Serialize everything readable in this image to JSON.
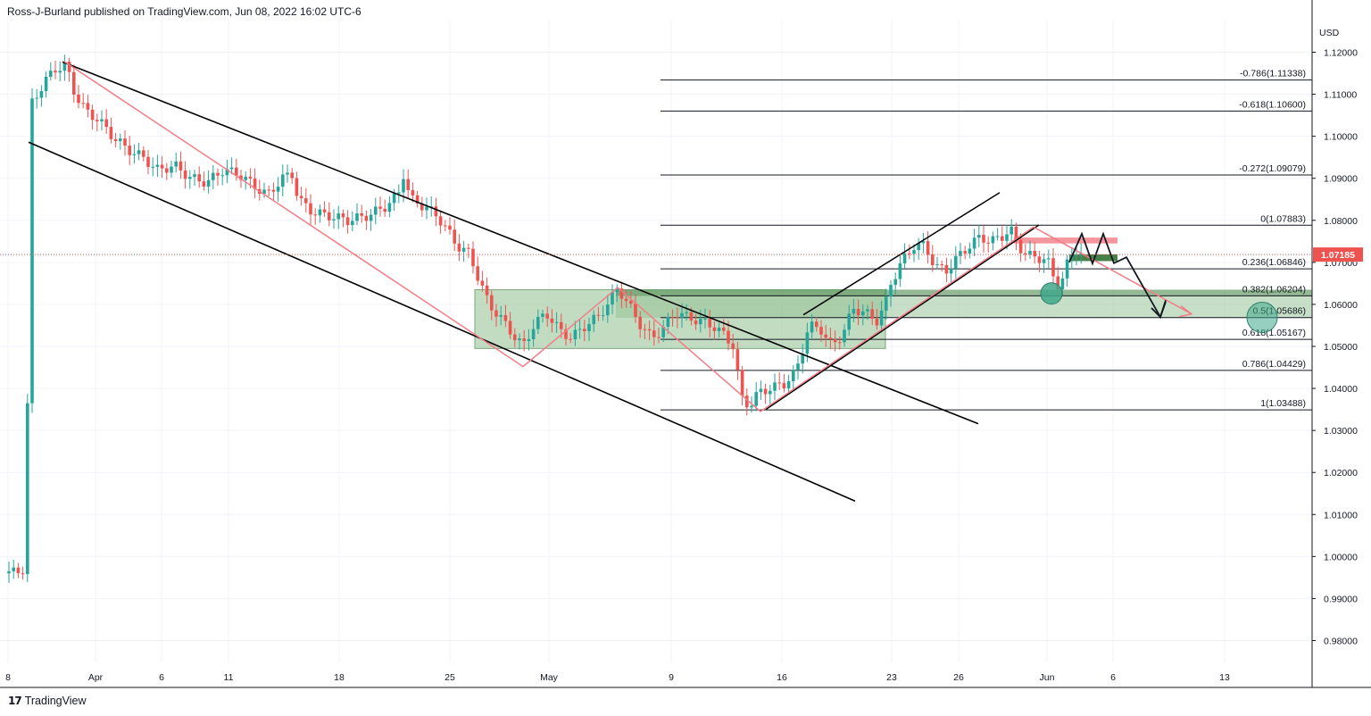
{
  "header": {
    "attribution": "Ross-J-Burland published on TradingView.com, Jun 08, 2022 16:02 UTC-6"
  },
  "footer": {
    "brand": "TradingView",
    "logo_icon": "tradingview-logo-icon"
  },
  "chart_data": {
    "type": "candlestick",
    "currency": "USD",
    "ylim": [
      0.97,
      1.125
    ],
    "y_ticks": [
      "1.12000",
      "1.11000",
      "1.10000",
      "1.09000",
      "1.08000",
      "1.07000",
      "1.06000",
      "1.05000",
      "1.04000",
      "1.03000",
      "1.02000",
      "1.01000",
      "1.00000",
      "0.99000",
      "0.98000"
    ],
    "y_tick_values": [
      1.12,
      1.11,
      1.1,
      1.09,
      1.08,
      1.07,
      1.06,
      1.05,
      1.04,
      1.03,
      1.02,
      1.01,
      1.0,
      0.99,
      0.98
    ],
    "x_ticks": [
      "8",
      "Apr",
      "6",
      "11",
      "18",
      "25",
      "May",
      "9",
      "16",
      "23",
      "26",
      "Jun",
      "6",
      "13"
    ],
    "last_price": "1.07185",
    "last_price_value": 1.07185,
    "colors": {
      "up": "#26a69a",
      "down": "#ef5350",
      "trend": "#000000",
      "pattern": "#f47c85",
      "zone": "#8fbf8f",
      "zone_dark": "#4f8a4f",
      "price_label": "#ef5350"
    },
    "fib_levels": [
      {
        "label": "-0.786(1.11338)",
        "value": 1.11338
      },
      {
        "label": "-0.618(1.10600)",
        "value": 1.106
      },
      {
        "label": "-0.272(1.09079)",
        "value": 1.09079
      },
      {
        "label": "0(1.07883)",
        "value": 1.07883
      },
      {
        "label": "0.236(1.06846)",
        "value": 1.06846
      },
      {
        "label": "0.382(1.06204)",
        "value": 1.06204
      },
      {
        "label": "0.5(1.05686)",
        "value": 1.05686
      },
      {
        "label": "0.618(1.05167)",
        "value": 1.05167
      },
      {
        "label": "0.786(1.04429)",
        "value": 1.04429
      },
      {
        "label": "1(1.03488)",
        "value": 1.03488
      }
    ],
    "price_path": [
      [
        10,
        0.996
      ],
      [
        28,
        0.997
      ],
      [
        36,
        1.108
      ],
      [
        50,
        1.113
      ],
      [
        62,
        1.116
      ],
      [
        74,
        1.117
      ],
      [
        84,
        1.11
      ],
      [
        96,
        1.106
      ],
      [
        110,
        1.104
      ],
      [
        126,
        1.1
      ],
      [
        142,
        1.097
      ],
      [
        160,
        1.095
      ],
      [
        176,
        1.092
      ],
      [
        196,
        1.093
      ],
      [
        214,
        1.09
      ],
      [
        232,
        1.089
      ],
      [
        250,
        1.092
      ],
      [
        268,
        1.091
      ],
      [
        286,
        1.088
      ],
      [
        300,
        1.086
      ],
      [
        316,
        1.09
      ],
      [
        328,
        1.091
      ],
      [
        334,
        1.085
      ],
      [
        350,
        1.082
      ],
      [
        370,
        1.081
      ],
      [
        390,
        1.08
      ],
      [
        410,
        1.081
      ],
      [
        430,
        1.083
      ],
      [
        446,
        1.086
      ],
      [
        452,
        1.091
      ],
      [
        460,
        1.085
      ],
      [
        478,
        1.083
      ],
      [
        490,
        1.081
      ],
      [
        500,
        1.078
      ],
      [
        512,
        1.074
      ],
      [
        526,
        1.072
      ],
      [
        538,
        1.065
      ],
      [
        548,
        1.06
      ],
      [
        560,
        1.057
      ],
      [
        574,
        1.053
      ],
      [
        586,
        1.05
      ],
      [
        598,
        1.055
      ],
      [
        612,
        1.058
      ],
      [
        626,
        1.054
      ],
      [
        640,
        1.052
      ],
      [
        656,
        1.055
      ],
      [
        670,
        1.057
      ],
      [
        684,
        1.061
      ],
      [
        692,
        1.064
      ],
      [
        704,
        1.06
      ],
      [
        718,
        1.055
      ],
      [
        730,
        1.052
      ],
      [
        742,
        1.054
      ],
      [
        756,
        1.058
      ],
      [
        770,
        1.057
      ],
      [
        784,
        1.056
      ],
      [
        798,
        1.055
      ],
      [
        810,
        1.053
      ],
      [
        822,
        1.05
      ],
      [
        826,
        1.044
      ],
      [
        832,
        1.037
      ],
      [
        840,
        1.036
      ],
      [
        850,
        1.039
      ],
      [
        862,
        1.04
      ],
      [
        878,
        1.041
      ],
      [
        892,
        1.044
      ],
      [
        900,
        1.05
      ],
      [
        906,
        1.055
      ],
      [
        920,
        1.054
      ],
      [
        932,
        1.05
      ],
      [
        944,
        1.053
      ],
      [
        956,
        1.059
      ],
      [
        970,
        1.058
      ],
      [
        982,
        1.056
      ],
      [
        992,
        1.06
      ],
      [
        998,
        1.065
      ],
      [
        1010,
        1.07
      ],
      [
        1024,
        1.074
      ],
      [
        1036,
        1.074
      ],
      [
        1048,
        1.069
      ],
      [
        1060,
        1.068
      ],
      [
        1072,
        1.071
      ],
      [
        1086,
        1.074
      ],
      [
        1098,
        1.076
      ],
      [
        1110,
        1.075
      ],
      [
        1122,
        1.076
      ],
      [
        1132,
        1.078
      ],
      [
        1140,
        1.074
      ],
      [
        1150,
        1.072
      ],
      [
        1160,
        1.071
      ],
      [
        1170,
        1.071
      ],
      [
        1178,
        1.069
      ],
      [
        1182,
        1.064
      ],
      [
        1190,
        1.066
      ],
      [
        1198,
        1.071
      ],
      [
        1206,
        1.073
      ],
      [
        1212,
        1.072
      ]
    ],
    "annotations": {
      "descending_channel_upper": [
        [
          70,
          1.1177
        ],
        [
          1096,
          1.0316
        ]
      ],
      "descending_channel_lower": [
        [
          32,
          1.0986
        ],
        [
          958,
          1.0132
        ]
      ],
      "pink_zigzag": [
        [
          72,
          1.1178
        ],
        [
          586,
          1.0452
        ],
        [
          692,
          1.064
        ],
        [
          852,
          1.0345
        ],
        [
          1158,
          1.0784
        ],
        [
          1335,
          1.0577
        ]
      ],
      "ascending_channel_upper": [
        [
          900,
          1.0575
        ],
        [
          1120,
          1.0866
        ]
      ],
      "ascending_channel_lower": [
        [
          858,
          1.035
        ],
        [
          1164,
          1.0789
        ]
      ],
      "pink_resistance_box": [
        [
          1136,
          1.0759
        ],
        [
          1252,
          1.0745
        ]
      ],
      "green_support_box": [
        [
          1198,
          1.0719
        ],
        [
          1252,
          1.0703
        ]
      ],
      "projection_path": [
        [
          1198,
          1.07
        ],
        [
          1212,
          1.0768
        ],
        [
          1224,
          1.0697
        ],
        [
          1236,
          1.0768
        ],
        [
          1248,
          1.0698
        ],
        [
          1262,
          1.0712
        ],
        [
          1300,
          1.057
        ],
        [
          1306,
          1.061
        ]
      ],
      "consolidation_zone": [
        [
          532,
          1.0635
        ],
        [
          992,
          1.0495
        ]
      ],
      "fib_zone_dark": [
        [
          690,
          1.0635
        ],
        [
          1470,
          1.062
        ]
      ],
      "fib_zone_mid": [
        [
          690,
          1.062
        ],
        [
          1470,
          1.0568
        ]
      ],
      "circle_markers": [
        [
          1178,
          1.0626
        ],
        [
          1414,
          1.0569
        ]
      ]
    }
  }
}
